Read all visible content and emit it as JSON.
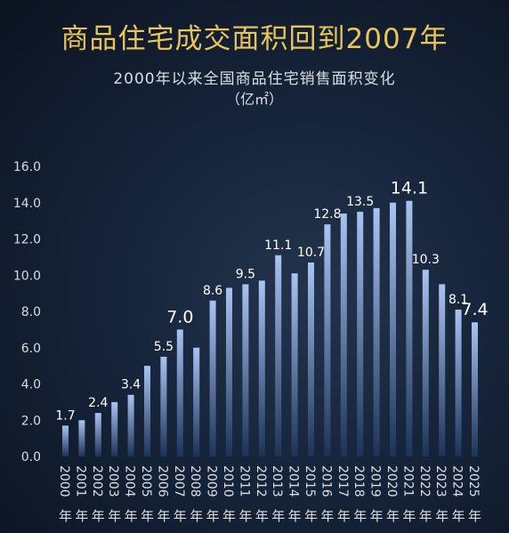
{
  "title": "商品住宅成交面积回到2007年",
  "subtitle": "2000年以来全国商品住宅销售面积变化",
  "unit": "（亿㎡）",
  "chart_data": {
    "type": "bar",
    "categories": [
      "2000年",
      "2001年",
      "2002年",
      "2003年",
      "2004年",
      "2005年",
      "2006年",
      "2007年",
      "2008年",
      "2009年",
      "2010年",
      "2011年",
      "2012年",
      "2013年",
      "2014年",
      "2015年",
      "2016年",
      "2017年",
      "2018年",
      "2019年",
      "2020年",
      "2021年",
      "2022年",
      "2023年",
      "2024年",
      "2025年"
    ],
    "values": [
      1.7,
      2.0,
      2.4,
      3.0,
      3.4,
      5.0,
      5.5,
      7.0,
      6.0,
      8.6,
      9.3,
      9.5,
      9.7,
      11.1,
      10.1,
      10.7,
      12.8,
      13.4,
      13.5,
      13.7,
      14.0,
      14.1,
      10.3,
      9.5,
      8.1,
      7.4
    ],
    "data_labels": [
      {
        "index": 0,
        "text": "1.7"
      },
      {
        "index": 2,
        "text": "2.4"
      },
      {
        "index": 4,
        "text": "3.4"
      },
      {
        "index": 6,
        "text": "5.5"
      },
      {
        "index": 7,
        "text": "7.0",
        "emphasis": true
      },
      {
        "index": 9,
        "text": "8.6"
      },
      {
        "index": 11,
        "text": "9.5"
      },
      {
        "index": 13,
        "text": "11.1"
      },
      {
        "index": 15,
        "text": "10.7"
      },
      {
        "index": 16,
        "text": "12.8"
      },
      {
        "index": 18,
        "text": "13.5"
      },
      {
        "index": 21,
        "text": "14.1",
        "emphasis": true
      },
      {
        "index": 22,
        "text": "10.3"
      },
      {
        "index": 24,
        "text": "8.1"
      },
      {
        "index": 25,
        "text": "7.4",
        "emphasis": true
      }
    ],
    "yticks": [
      "0.0",
      "2.0",
      "4.0",
      "6.0",
      "8.0",
      "10.0",
      "12.0",
      "14.0",
      "16.0"
    ],
    "ylim": [
      0,
      16
    ],
    "grid": false,
    "colors": {
      "title": "#e8c45a",
      "text": "#d9dde3",
      "bar_top": "#a9c3f2",
      "bar_bottom": "#1c3357"
    }
  }
}
